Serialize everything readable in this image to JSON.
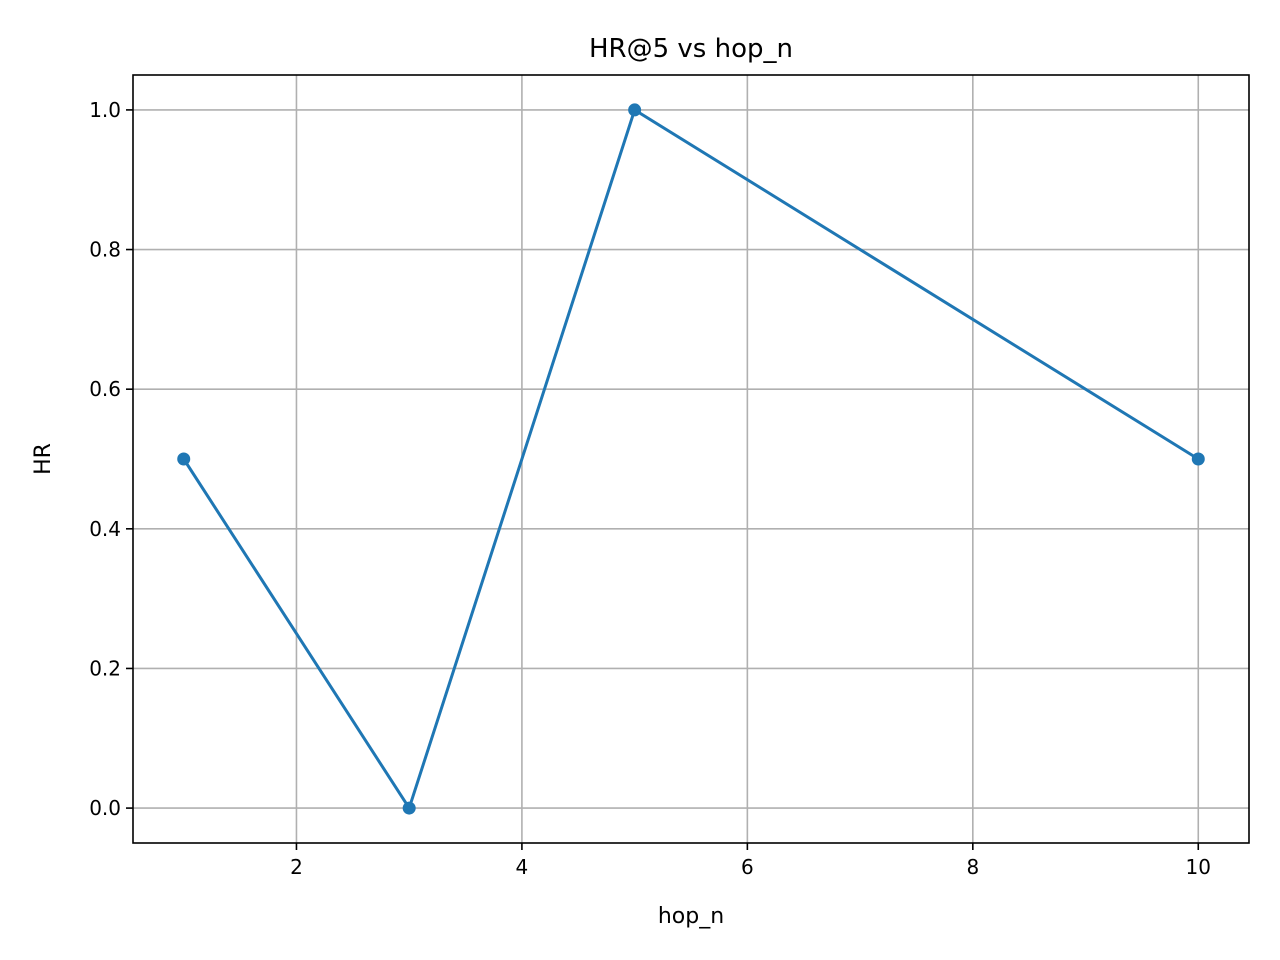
{
  "chart_data": {
    "type": "line",
    "title": "HR@5 vs hop_n",
    "xlabel": "hop_n",
    "ylabel": "HR",
    "xlim": [
      0.55,
      10.45
    ],
    "ylim": [
      -0.05,
      1.05
    ],
    "xticks": [
      2,
      4,
      6,
      8,
      10
    ],
    "yticks": [
      0.0,
      0.2,
      0.4,
      0.6,
      0.8,
      1.0
    ],
    "xtick_labels": [
      "2",
      "4",
      "6",
      "8",
      "10"
    ],
    "ytick_labels": [
      "0.0",
      "0.2",
      "0.4",
      "0.6",
      "0.8",
      "1.0"
    ],
    "grid": true,
    "legend": "none",
    "series": [
      {
        "color": "#1f77b4",
        "marker": "circle",
        "x": [
          1,
          3,
          5,
          10
        ],
        "y": [
          0.5,
          0.0,
          1.0,
          0.5
        ]
      }
    ]
  }
}
